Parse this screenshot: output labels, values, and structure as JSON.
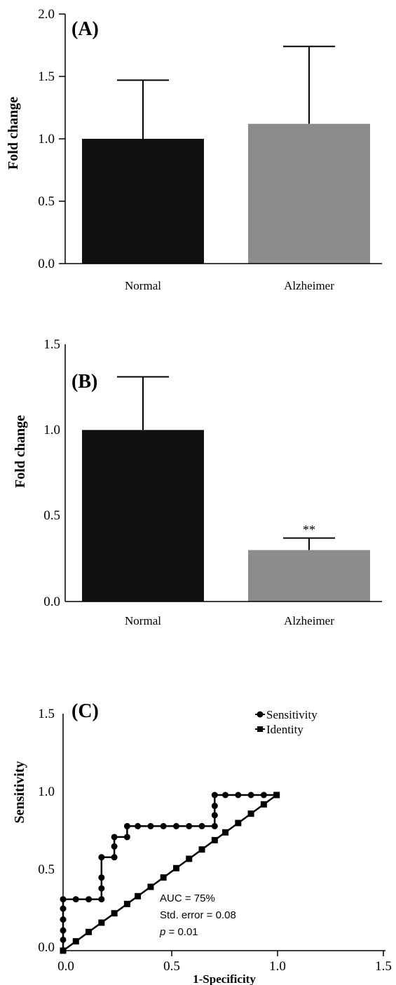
{
  "chart_data": [
    {
      "panel": "(A)",
      "type": "bar",
      "categories": [
        "Normal",
        "Alzheimer"
      ],
      "values": [
        1.0,
        1.12
      ],
      "errors": [
        0.47,
        0.62
      ],
      "colors": [
        "#111111",
        "#8c8c8c"
      ],
      "ylabel": "Fold change",
      "xlabel": "",
      "ylim": [
        0.0,
        2.0
      ],
      "yticks": [
        "0.0",
        "0.5",
        "1.0",
        "1.5",
        "2.0"
      ],
      "annotations": []
    },
    {
      "panel": "(B)",
      "type": "bar",
      "categories": [
        "Normal",
        "Alzheimer"
      ],
      "values": [
        1.0,
        0.3
      ],
      "errors": [
        0.31,
        0.07
      ],
      "colors": [
        "#111111",
        "#8c8c8c"
      ],
      "ylabel": "Fold change",
      "xlabel": "",
      "ylim": [
        0.0,
        1.5
      ],
      "yticks": [
        "0.0",
        "0.5",
        "1.0",
        "1.5"
      ],
      "annotations": [
        "",
        "**"
      ]
    },
    {
      "panel": "(C)",
      "type": "line",
      "xlabel": "1-Specificity",
      "ylabel": "Sensitivity",
      "xlim": [
        0.0,
        1.5
      ],
      "ylim": [
        0.0,
        1.5
      ],
      "xticks": [
        "0.0",
        "0.5",
        "1.0",
        "1.5"
      ],
      "yticks": [
        "0.0",
        "0.5",
        "1.0",
        "1.5"
      ],
      "legend_position": "top-right",
      "series": [
        {
          "name": "Sensitivity",
          "marker": "circle",
          "x": [
            0.0,
            0.0,
            0.0,
            0.0,
            0.0,
            0.0,
            0.06,
            0.12,
            0.18,
            0.18,
            0.18,
            0.18,
            0.24,
            0.24,
            0.24,
            0.3,
            0.3,
            0.35,
            0.41,
            0.47,
            0.53,
            0.59,
            0.65,
            0.71,
            0.71,
            0.71,
            0.71,
            0.76,
            0.82,
            0.88,
            0.94,
            1.0
          ],
          "y": [
            0.0,
            0.07,
            0.13,
            0.2,
            0.27,
            0.33,
            0.33,
            0.33,
            0.33,
            0.4,
            0.47,
            0.6,
            0.6,
            0.67,
            0.73,
            0.73,
            0.8,
            0.8,
            0.8,
            0.8,
            0.8,
            0.8,
            0.8,
            0.8,
            0.87,
            0.93,
            1.0,
            1.0,
            1.0,
            1.0,
            1.0,
            1.0
          ]
        },
        {
          "name": "Identity",
          "marker": "square",
          "x": [
            0.0,
            0.06,
            0.12,
            0.18,
            0.24,
            0.3,
            0.35,
            0.41,
            0.47,
            0.53,
            0.59,
            0.65,
            0.71,
            0.76,
            0.82,
            0.88,
            0.94,
            1.0
          ],
          "y": [
            0.0,
            0.06,
            0.12,
            0.18,
            0.24,
            0.3,
            0.35,
            0.41,
            0.47,
            0.53,
            0.59,
            0.65,
            0.71,
            0.76,
            0.82,
            0.88,
            0.94,
            1.0
          ]
        }
      ],
      "annotations": [
        "AUC = 75%",
        "Std. error = 0.08",
        "p = 0.01"
      ]
    }
  ]
}
